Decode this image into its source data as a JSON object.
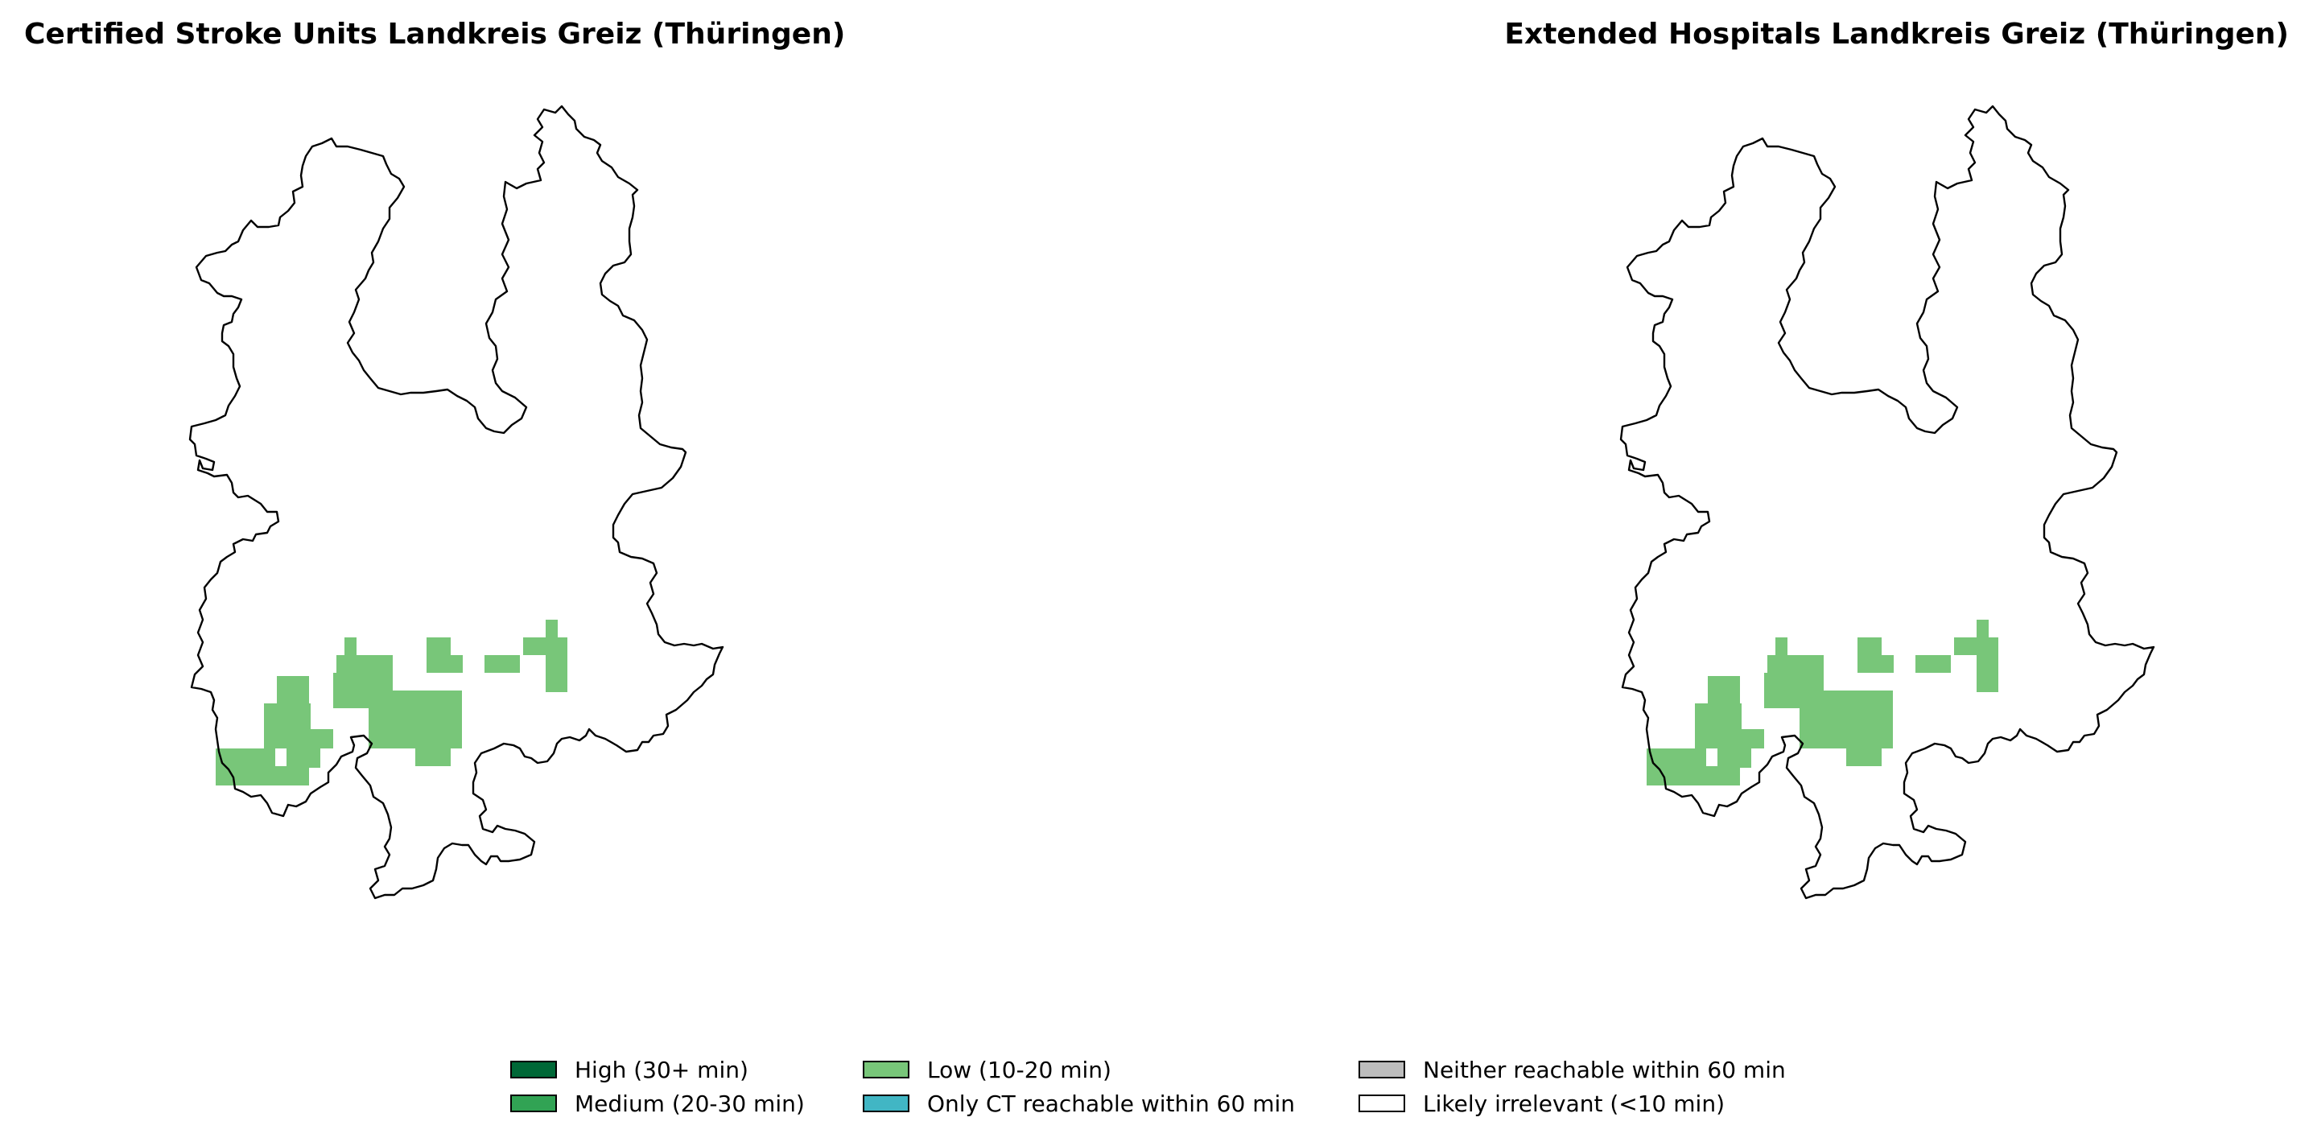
{
  "maps": {
    "left_title": "Certified Stroke Units Landkreis Greiz (Thüringen)",
    "right_title": "Extended Hospitals Landkreis Greiz (Thüringen)"
  },
  "legend": [
    {
      "label": "High (30+ min)",
      "color": "#006837"
    },
    {
      "label": "Medium (20-30 min)",
      "color": "#31a354"
    },
    {
      "label": "Low (10-20 min)",
      "color": "#78c679"
    },
    {
      "label": "Only CT reachable within 60 min",
      "color": "#41b6c4"
    },
    {
      "label": "Neither reachable within 60 min",
      "color": "#bdbdbd"
    },
    {
      "label": "Likely irrelevant (<10 min)",
      "color": "#ffffff"
    }
  ],
  "colors": {
    "outline": "#000000",
    "low_fill": "#78c679"
  }
}
